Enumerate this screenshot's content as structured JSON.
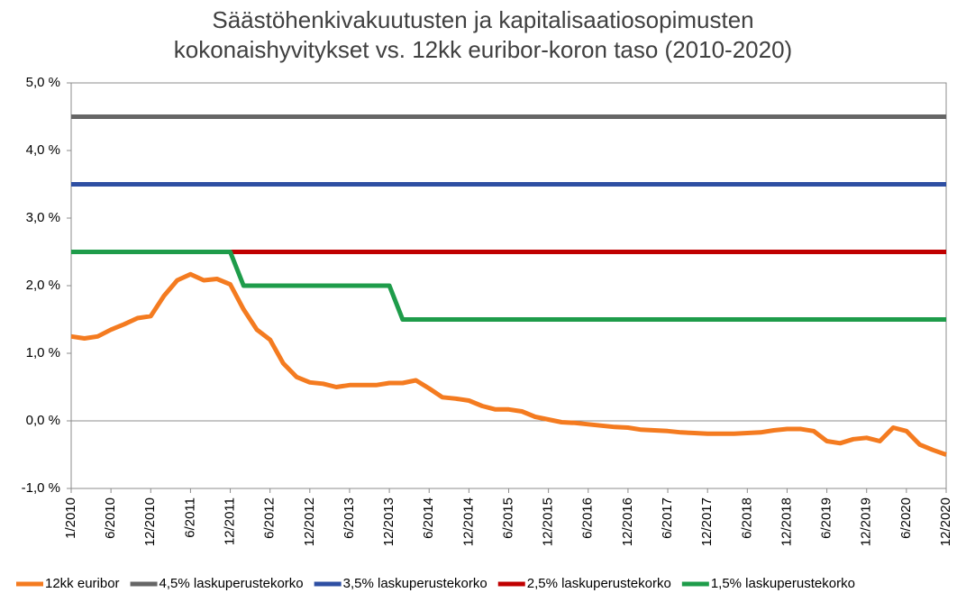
{
  "chart_data": {
    "type": "line",
    "title": "Säästöhenkivakuutusten ja kapitalisaatiosopimusten kokonaishyvitykset vs. 12kk euribor-koron taso (2010-2020)",
    "categories": [
      "1/2010",
      null,
      null,
      "6/2010",
      null,
      null,
      "12/2010",
      null,
      null,
      "6/2011",
      null,
      null,
      "12/2011",
      null,
      null,
      "6/2012",
      null,
      null,
      "12/2012",
      null,
      null,
      "6/2013",
      null,
      null,
      "12/2013",
      null,
      null,
      "6/2014",
      null,
      null,
      "12/2014",
      null,
      null,
      "6/2015",
      null,
      null,
      "12/2015",
      null,
      null,
      "6/2016",
      null,
      null,
      "12/2016",
      null,
      null,
      "6/2017",
      null,
      null,
      "12/2017",
      null,
      null,
      "6/2018",
      null,
      null,
      "12/2018",
      null,
      null,
      "6/2019",
      null,
      null,
      "12/2019",
      null,
      null,
      "6/2020",
      null,
      null,
      "12/2020"
    ],
    "series": [
      {
        "name": "12kk euribor",
        "color": "#f47b20",
        "values": [
          1.25,
          1.22,
          1.25,
          1.35,
          1.43,
          1.52,
          1.55,
          1.85,
          2.08,
          2.17,
          2.08,
          2.1,
          2.02,
          1.65,
          1.35,
          1.2,
          0.85,
          0.65,
          0.57,
          0.55,
          0.5,
          0.53,
          0.53,
          0.53,
          0.56,
          0.56,
          0.6,
          0.48,
          0.35,
          0.33,
          0.3,
          0.22,
          0.17,
          0.17,
          0.14,
          0.06,
          0.02,
          -0.02,
          -0.03,
          -0.05,
          -0.07,
          -0.09,
          -0.1,
          -0.13,
          -0.14,
          -0.15,
          -0.17,
          -0.18,
          -0.19,
          -0.19,
          -0.19,
          -0.18,
          -0.17,
          -0.14,
          -0.12,
          -0.12,
          -0.15,
          -0.3,
          -0.33,
          -0.27,
          -0.25,
          -0.3,
          -0.1,
          -0.15,
          -0.35,
          -0.43,
          -0.5
        ]
      },
      {
        "name": "4,5% laskuperustekorko",
        "color": "#666666",
        "values": [
          4.5,
          4.5,
          4.5,
          4.5,
          4.5,
          4.5,
          4.5,
          4.5,
          4.5,
          4.5,
          4.5,
          4.5,
          4.5,
          4.5,
          4.5,
          4.5,
          4.5,
          4.5,
          4.5,
          4.5,
          4.5,
          4.5,
          4.5,
          4.5,
          4.5,
          4.5,
          4.5,
          4.5,
          4.5,
          4.5,
          4.5,
          4.5,
          4.5,
          4.5,
          4.5,
          4.5,
          4.5,
          4.5,
          4.5,
          4.5,
          4.5,
          4.5,
          4.5,
          4.5,
          4.5,
          4.5,
          4.5,
          4.5,
          4.5,
          4.5,
          4.5,
          4.5,
          4.5,
          4.5,
          4.5,
          4.5,
          4.5,
          4.5,
          4.5,
          4.5,
          4.5,
          4.5,
          4.5,
          4.5,
          4.5,
          4.5,
          4.5
        ]
      },
      {
        "name": "3,5% laskuperustekorko",
        "color": "#2e4fa3",
        "values": [
          3.5,
          3.5,
          3.5,
          3.5,
          3.5,
          3.5,
          3.5,
          3.5,
          3.5,
          3.5,
          3.5,
          3.5,
          3.5,
          3.5,
          3.5,
          3.5,
          3.5,
          3.5,
          3.5,
          3.5,
          3.5,
          3.5,
          3.5,
          3.5,
          3.5,
          3.5,
          3.5,
          3.5,
          3.5,
          3.5,
          3.5,
          3.5,
          3.5,
          3.5,
          3.5,
          3.5,
          3.5,
          3.5,
          3.5,
          3.5,
          3.5,
          3.5,
          3.5,
          3.5,
          3.5,
          3.5,
          3.5,
          3.5,
          3.5,
          3.5,
          3.5,
          3.5,
          3.5,
          3.5,
          3.5,
          3.5,
          3.5,
          3.5,
          3.5,
          3.5,
          3.5,
          3.5,
          3.5,
          3.5,
          3.5,
          3.5,
          3.5
        ]
      },
      {
        "name": "2,5% laskuperustekorko",
        "color": "#c00000",
        "values": [
          null,
          null,
          null,
          null,
          null,
          null,
          null,
          null,
          null,
          null,
          null,
          null,
          2.5,
          2.5,
          2.5,
          2.5,
          2.5,
          2.5,
          2.5,
          2.5,
          2.5,
          2.5,
          2.5,
          2.5,
          2.5,
          2.5,
          2.5,
          2.5,
          2.5,
          2.5,
          2.5,
          2.5,
          2.5,
          2.5,
          2.5,
          2.5,
          2.5,
          2.5,
          2.5,
          2.5,
          2.5,
          2.5,
          2.5,
          2.5,
          2.5,
          2.5,
          2.5,
          2.5,
          2.5,
          2.5,
          2.5,
          2.5,
          2.5,
          2.5,
          2.5,
          2.5,
          2.5,
          2.5,
          2.5,
          2.5,
          2.5,
          2.5,
          2.5,
          2.5,
          2.5,
          2.5,
          2.5
        ]
      },
      {
        "name": "1,5% laskuperustekorko",
        "color": "#1e9c4a",
        "values": [
          2.5,
          2.5,
          2.5,
          2.5,
          2.5,
          2.5,
          2.5,
          2.5,
          2.5,
          2.5,
          2.5,
          2.5,
          2.5,
          2.0,
          2.0,
          2.0,
          2.0,
          2.0,
          2.0,
          2.0,
          2.0,
          2.0,
          2.0,
          2.0,
          2.0,
          1.5,
          1.5,
          1.5,
          1.5,
          1.5,
          1.5,
          1.5,
          1.5,
          1.5,
          1.5,
          1.5,
          1.5,
          1.5,
          1.5,
          1.5,
          1.5,
          1.5,
          1.5,
          1.5,
          1.5,
          1.5,
          1.5,
          1.5,
          1.5,
          1.5,
          1.5,
          1.5,
          1.5,
          1.5,
          1.5,
          1.5,
          1.5,
          1.5,
          1.5,
          1.5,
          1.5,
          1.5,
          1.5,
          1.5,
          1.5,
          1.5,
          1.5
        ]
      }
    ],
    "ylim": [
      -1,
      5
    ],
    "yticks": [
      {
        "value": -1,
        "label": "-1,0 %"
      },
      {
        "value": 0,
        "label": "0,0 %"
      },
      {
        "value": 1,
        "label": "1,0 %"
      },
      {
        "value": 2,
        "label": "2,0 %"
      },
      {
        "value": 3,
        "label": "3,0 %"
      },
      {
        "value": 4,
        "label": "4,0 %"
      },
      {
        "value": 5,
        "label": "5,0 %"
      }
    ],
    "grid": false,
    "legend": "bottom"
  }
}
